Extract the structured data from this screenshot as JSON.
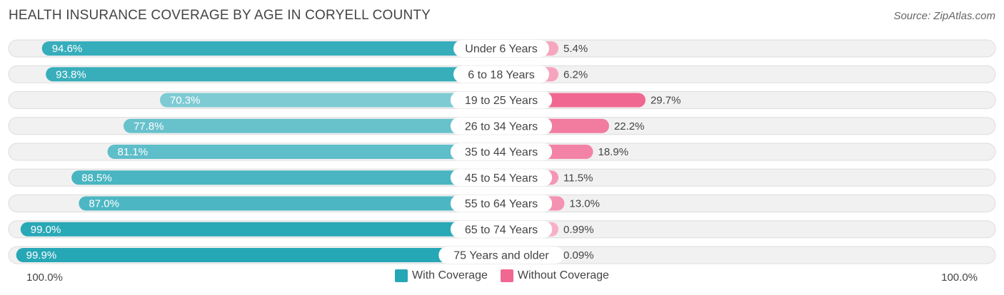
{
  "chart_data": {
    "type": "bar",
    "orientation": "diverging-horizontal",
    "title": "HEALTH INSURANCE COVERAGE BY AGE IN CORYELL COUNTY",
    "source": "Source: ZipAtlas.com",
    "categories": [
      "Under 6 Years",
      "6 to 18 Years",
      "19 to 25 Years",
      "26 to 34 Years",
      "35 to 44 Years",
      "45 to 54 Years",
      "55 to 64 Years",
      "65 to 74 Years",
      "75 Years and older"
    ],
    "series": [
      {
        "name": "With Coverage",
        "values": [
          94.6,
          93.8,
          70.3,
          77.8,
          81.1,
          88.5,
          87.0,
          99.0,
          99.9
        ],
        "labels": [
          "94.6%",
          "93.8%",
          "70.3%",
          "77.8%",
          "81.1%",
          "88.5%",
          "87.0%",
          "99.0%",
          "99.9%"
        ]
      },
      {
        "name": "Without Coverage",
        "values": [
          5.4,
          6.2,
          29.7,
          22.2,
          18.9,
          11.5,
          13.0,
          0.99,
          0.09
        ],
        "labels": [
          "5.4%",
          "6.2%",
          "29.7%",
          "22.2%",
          "18.9%",
          "11.5%",
          "13.0%",
          "0.99%",
          "0.09%"
        ]
      }
    ],
    "axis": {
      "left_label": "100.0%",
      "right_label": "100.0%",
      "max": 100
    },
    "legend": {
      "position": "bottom-center"
    }
  },
  "colors": {
    "with_strong": "#26a7b5",
    "with_light": "#7ecbd4",
    "without_strong": "#f06892",
    "without_light": "#f7b3c9",
    "track": "#f1f1f1",
    "track_border": "#dddddd"
  }
}
